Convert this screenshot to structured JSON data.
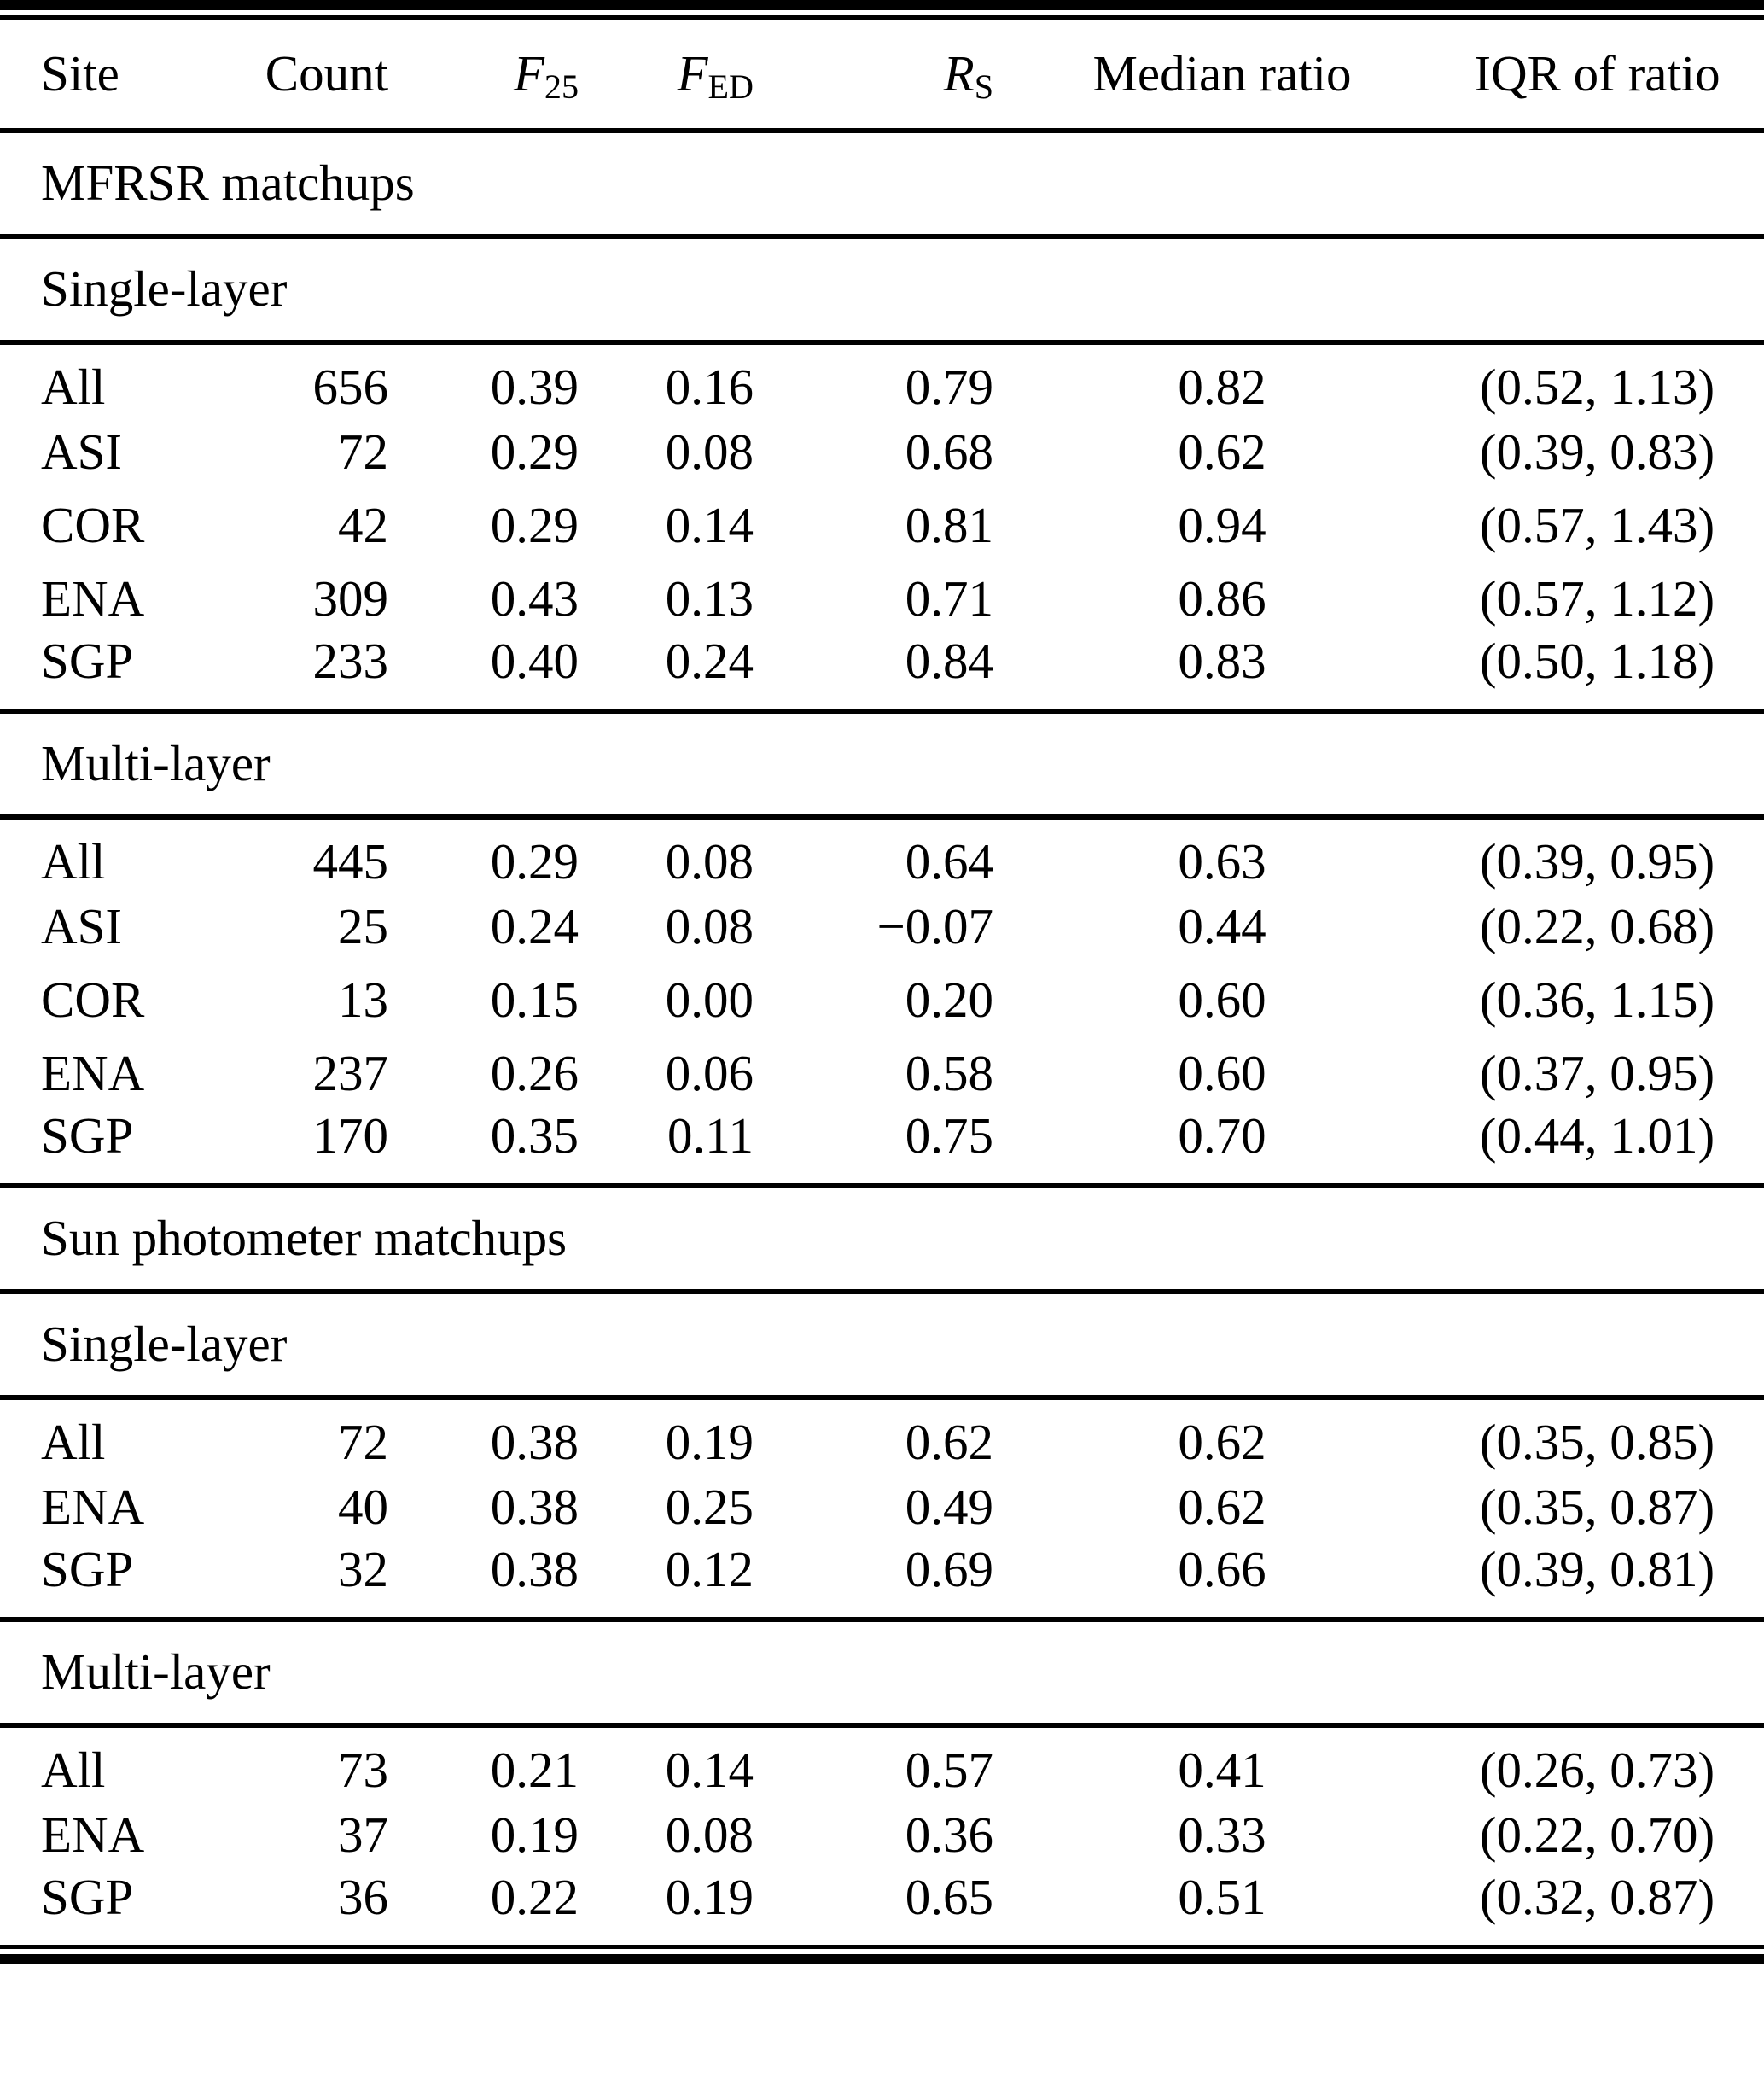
{
  "table": {
    "headers": {
      "site": "Site",
      "count": "Count",
      "f25_base": "F",
      "f25_sub": "25",
      "fed_base": "F",
      "fed_sub": "ED",
      "rs_base": "R",
      "rs_sub": "S",
      "median_ratio": "Median ratio",
      "iqr_of_ratio": "IQR of ratio"
    },
    "groups": [
      {
        "label": "MFRSR matchups",
        "subsections": [
          {
            "label": "Single-layer",
            "rows": [
              {
                "site": "All",
                "count": "656",
                "f25": "0.39",
                "fed": "0.16",
                "rs": "0.79",
                "median_ratio": "0.82",
                "iqr": "(0.52, 1.13)"
              },
              {
                "site": "ASI",
                "count": "72",
                "f25": "0.29",
                "fed": "0.08",
                "rs": "0.68",
                "median_ratio": "0.62",
                "iqr": "(0.39, 0.83)"
              },
              {
                "site": "COR",
                "count": "42",
                "f25": "0.29",
                "fed": "0.14",
                "rs": "0.81",
                "median_ratio": "0.94",
                "iqr": "(0.57, 1.43)"
              },
              {
                "site": "ENA",
                "count": "309",
                "f25": "0.43",
                "fed": "0.13",
                "rs": "0.71",
                "median_ratio": "0.86",
                "iqr": "(0.57, 1.12)"
              },
              {
                "site": "SGP",
                "count": "233",
                "f25": "0.40",
                "fed": "0.24",
                "rs": "0.84",
                "median_ratio": "0.83",
                "iqr": "(0.50, 1.18)"
              }
            ]
          },
          {
            "label": "Multi-layer",
            "rows": [
              {
                "site": "All",
                "count": "445",
                "f25": "0.29",
                "fed": "0.08",
                "rs": "0.64",
                "median_ratio": "0.63",
                "iqr": "(0.39, 0.95)"
              },
              {
                "site": "ASI",
                "count": "25",
                "f25": "0.24",
                "fed": "0.08",
                "rs": "−0.07",
                "median_ratio": "0.44",
                "iqr": "(0.22, 0.68)"
              },
              {
                "site": "COR",
                "count": "13",
                "f25": "0.15",
                "fed": "0.00",
                "rs": "0.20",
                "median_ratio": "0.60",
                "iqr": "(0.36, 1.15)"
              },
              {
                "site": "ENA",
                "count": "237",
                "f25": "0.26",
                "fed": "0.06",
                "rs": "0.58",
                "median_ratio": "0.60",
                "iqr": "(0.37, 0.95)"
              },
              {
                "site": "SGP",
                "count": "170",
                "f25": "0.35",
                "fed": "0.11",
                "rs": "0.75",
                "median_ratio": "0.70",
                "iqr": "(0.44, 1.01)"
              }
            ]
          }
        ]
      },
      {
        "label": "Sun photometer matchups",
        "subsections": [
          {
            "label": "Single-layer",
            "rows": [
              {
                "site": "All",
                "count": "72",
                "f25": "0.38",
                "fed": "0.19",
                "rs": "0.62",
                "median_ratio": "0.62",
                "iqr": "(0.35, 0.85)"
              },
              {
                "site": "ENA",
                "count": "40",
                "f25": "0.38",
                "fed": "0.25",
                "rs": "0.49",
                "median_ratio": "0.62",
                "iqr": "(0.35, 0.87)"
              },
              {
                "site": "SGP",
                "count": "32",
                "f25": "0.38",
                "fed": "0.12",
                "rs": "0.69",
                "median_ratio": "0.66",
                "iqr": "(0.39, 0.81)"
              }
            ]
          },
          {
            "label": "Multi-layer",
            "rows": [
              {
                "site": "All",
                "count": "73",
                "f25": "0.21",
                "fed": "0.14",
                "rs": "0.57",
                "median_ratio": "0.41",
                "iqr": "(0.26, 0.73)"
              },
              {
                "site": "ENA",
                "count": "37",
                "f25": "0.19",
                "fed": "0.08",
                "rs": "0.36",
                "median_ratio": "0.33",
                "iqr": "(0.22, 0.70)"
              },
              {
                "site": "SGP",
                "count": "36",
                "f25": "0.22",
                "fed": "0.19",
                "rs": "0.65",
                "median_ratio": "0.51",
                "iqr": "(0.32, 0.87)"
              }
            ]
          }
        ]
      }
    ]
  }
}
